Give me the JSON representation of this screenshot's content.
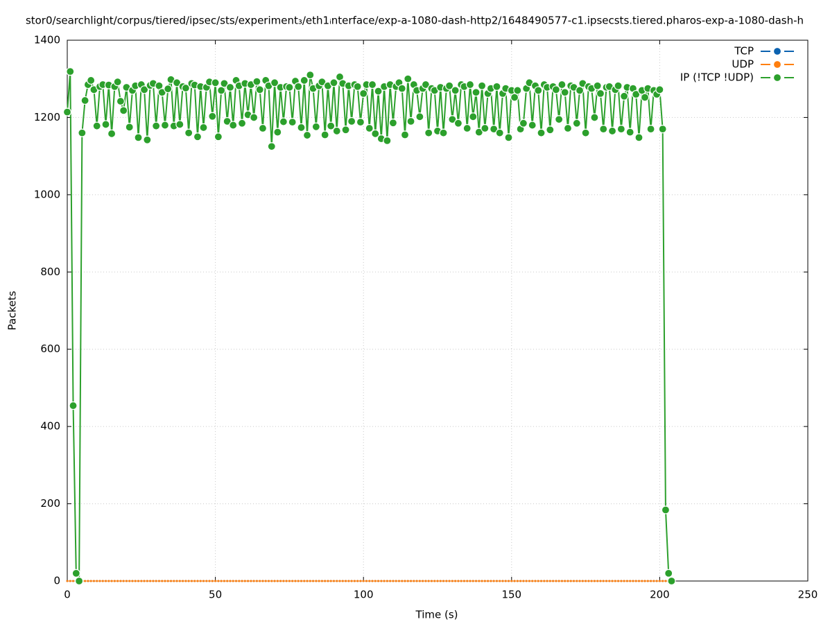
{
  "chart_data": {
    "type": "line",
    "title": "stor0/searchlight/corpus/tiered/ipsec/sts/experiment₃/eth1ᵢnterface/exp-a-1080-dash-http2/1648490577-c1.ipsecsts.tiered.pharos-exp-a-1080-dash-h",
    "x_label": "Time (s)",
    "y_label": "Packets",
    "xlim": [
      0,
      250
    ],
    "xticks": [
      0,
      50,
      100,
      150,
      200,
      250
    ],
    "ylim": [
      0,
      1400
    ],
    "yticks": [
      0,
      200,
      400,
      600,
      800,
      1000,
      1200,
      1400
    ],
    "grid": true,
    "legend": "top-right",
    "x": [
      0,
      1,
      2,
      3,
      4,
      5,
      6,
      7,
      8,
      9,
      10,
      11,
      12,
      13,
      14,
      15,
      16,
      17,
      18,
      19,
      20,
      21,
      22,
      23,
      24,
      25,
      26,
      27,
      28,
      29,
      30,
      31,
      32,
      33,
      34,
      35,
      36,
      37,
      38,
      39,
      40,
      41,
      42,
      43,
      44,
      45,
      46,
      47,
      48,
      49,
      50,
      51,
      52,
      53,
      54,
      55,
      56,
      57,
      58,
      59,
      60,
      61,
      62,
      63,
      64,
      65,
      66,
      67,
      68,
      69,
      70,
      71,
      72,
      73,
      74,
      75,
      76,
      77,
      78,
      79,
      80,
      81,
      82,
      83,
      84,
      85,
      86,
      87,
      88,
      89,
      90,
      91,
      92,
      93,
      94,
      95,
      96,
      97,
      98,
      99,
      100,
      101,
      102,
      103,
      104,
      105,
      106,
      107,
      108,
      109,
      110,
      111,
      112,
      113,
      114,
      115,
      116,
      117,
      118,
      119,
      120,
      121,
      122,
      123,
      124,
      125,
      126,
      127,
      128,
      129,
      130,
      131,
      132,
      133,
      134,
      135,
      136,
      137,
      138,
      139,
      140,
      141,
      142,
      143,
      144,
      145,
      146,
      147,
      148,
      149,
      150,
      151,
      152,
      153,
      154,
      155,
      156,
      157,
      158,
      159,
      160,
      161,
      162,
      163,
      164,
      165,
      166,
      167,
      168,
      169,
      170,
      171,
      172,
      173,
      174,
      175,
      176,
      177,
      178,
      179,
      180,
      181,
      182,
      183,
      184,
      185,
      186,
      187,
      188,
      189,
      190,
      191,
      192,
      193,
      194,
      195,
      196,
      197,
      198,
      199,
      200,
      201,
      202,
      203,
      204
    ],
    "series": [
      {
        "name": "TCP",
        "color": "#0b62b0",
        "values": [
          0,
          0,
          0,
          0,
          0,
          0,
          0,
          0,
          0,
          0,
          0,
          0,
          0,
          0,
          0,
          0,
          0,
          0,
          0,
          0,
          0,
          0,
          0,
          0,
          0,
          0,
          0,
          0,
          0,
          0,
          0,
          0,
          0,
          0,
          0,
          0,
          0,
          0,
          0,
          0,
          0,
          0,
          0,
          0,
          0,
          0,
          0,
          0,
          0,
          0,
          0,
          0,
          0,
          0,
          0,
          0,
          0,
          0,
          0,
          0,
          0,
          0,
          0,
          0,
          0,
          0,
          0,
          0,
          0,
          0,
          0,
          0,
          0,
          0,
          0,
          0,
          0,
          0,
          0,
          0,
          0,
          0,
          0,
          0,
          0,
          0,
          0,
          0,
          0,
          0,
          0,
          0,
          0,
          0,
          0,
          0,
          0,
          0,
          0,
          0,
          0,
          0,
          0,
          0,
          0,
          0,
          0,
          0,
          0,
          0,
          0,
          0,
          0,
          0,
          0,
          0,
          0,
          0,
          0,
          0,
          0,
          0,
          0,
          0,
          0,
          0,
          0,
          0,
          0,
          0,
          0,
          0,
          0,
          0,
          0,
          0,
          0,
          0,
          0,
          0,
          0,
          0,
          0,
          0,
          0,
          0,
          0,
          0,
          0,
          0,
          0,
          0,
          0,
          0,
          0,
          0,
          0,
          0,
          0,
          0,
          0,
          0,
          0,
          0,
          0,
          0,
          0,
          0,
          0,
          0,
          0,
          0,
          0,
          0,
          0,
          0,
          0,
          0,
          0,
          0,
          0,
          0,
          0,
          0,
          0,
          0,
          0,
          0,
          0,
          0,
          0,
          0,
          0,
          0,
          0,
          0,
          0,
          0,
          0,
          0,
          0,
          0,
          0,
          0,
          0
        ]
      },
      {
        "name": "UDP",
        "color": "#ff7f0e",
        "values": [
          0,
          0,
          0,
          0,
          0,
          0,
          0,
          0,
          0,
          0,
          0,
          0,
          0,
          0,
          0,
          0,
          0,
          0,
          0,
          0,
          0,
          0,
          0,
          0,
          0,
          0,
          0,
          0,
          0,
          0,
          0,
          0,
          0,
          0,
          0,
          0,
          0,
          0,
          0,
          0,
          0,
          0,
          0,
          0,
          0,
          0,
          0,
          0,
          0,
          0,
          0,
          0,
          0,
          0,
          0,
          0,
          0,
          0,
          0,
          0,
          0,
          0,
          0,
          0,
          0,
          0,
          0,
          0,
          0,
          0,
          0,
          0,
          0,
          0,
          0,
          0,
          0,
          0,
          0,
          0,
          0,
          0,
          0,
          0,
          0,
          0,
          0,
          0,
          0,
          0,
          0,
          0,
          0,
          0,
          0,
          0,
          0,
          0,
          0,
          0,
          0,
          0,
          0,
          0,
          0,
          0,
          0,
          0,
          0,
          0,
          0,
          0,
          0,
          0,
          0,
          0,
          0,
          0,
          0,
          0,
          0,
          0,
          0,
          0,
          0,
          0,
          0,
          0,
          0,
          0,
          0,
          0,
          0,
          0,
          0,
          0,
          0,
          0,
          0,
          0,
          0,
          0,
          0,
          0,
          0,
          0,
          0,
          0,
          0,
          0,
          0,
          0,
          0,
          0,
          0,
          0,
          0,
          0,
          0,
          0,
          0,
          0,
          0,
          0,
          0,
          0,
          0,
          0,
          0,
          0,
          0,
          0,
          0,
          0,
          0,
          0,
          0,
          0,
          0,
          0,
          0,
          0,
          0,
          0,
          0,
          0,
          0,
          0,
          0,
          0,
          0,
          0,
          0,
          0,
          0,
          0,
          0,
          0,
          0,
          0,
          0,
          0,
          0,
          0,
          0
        ]
      },
      {
        "name": "IP (!TCP  !UDP)",
        "color": "#2ca02c",
        "values": [
          1214,
          1319,
          454,
          20,
          0,
          1160,
          1244,
          1285,
          1296,
          1272,
          1178,
          1280,
          1285,
          1182,
          1284,
          1158,
          1280,
          1292,
          1242,
          1218,
          1278,
          1175,
          1270,
          1282,
          1148,
          1285,
          1272,
          1142,
          1283,
          1288,
          1178,
          1282,
          1265,
          1180,
          1274,
          1298,
          1178,
          1290,
          1182,
          1280,
          1276,
          1160,
          1288,
          1284,
          1150,
          1280,
          1174,
          1278,
          1292,
          1203,
          1290,
          1150,
          1270,
          1288,
          1190,
          1278,
          1180,
          1296,
          1282,
          1185,
          1288,
          1207,
          1285,
          1200,
          1293,
          1272,
          1172,
          1296,
          1282,
          1125,
          1290,
          1162,
          1278,
          1189,
          1280,
          1278,
          1188,
          1294,
          1280,
          1174,
          1296,
          1154,
          1310,
          1275,
          1176,
          1282,
          1292,
          1155,
          1282,
          1178,
          1290,
          1165,
          1305,
          1288,
          1168,
          1282,
          1190,
          1285,
          1280,
          1188,
          1262,
          1285,
          1172,
          1285,
          1158,
          1268,
          1145,
          1280,
          1140,
          1285,
          1186,
          1280,
          1290,
          1275,
          1155,
          1300,
          1190,
          1285,
          1270,
          1202,
          1275,
          1285,
          1160,
          1275,
          1270,
          1165,
          1278,
          1160,
          1275,
          1282,
          1195,
          1270,
          1185,
          1285,
          1280,
          1172,
          1285,
          1202,
          1265,
          1162,
          1282,
          1172,
          1262,
          1275,
          1170,
          1280,
          1160,
          1262,
          1275,
          1148,
          1270,
          1252,
          1270,
          1170,
          1185,
          1275,
          1290,
          1180,
          1282,
          1270,
          1160,
          1285,
          1278,
          1168,
          1280,
          1272,
          1195,
          1285,
          1265,
          1172,
          1282,
          1278,
          1185,
          1270,
          1288,
          1160,
          1280,
          1275,
          1200,
          1282,
          1262,
          1170,
          1278,
          1280,
          1165,
          1272,
          1282,
          1170,
          1255,
          1278,
          1162,
          1275,
          1260,
          1148,
          1270,
          1252,
          1275,
          1170,
          1270,
          1260,
          1272,
          1170,
          184,
          20,
          0
        ]
      }
    ]
  }
}
